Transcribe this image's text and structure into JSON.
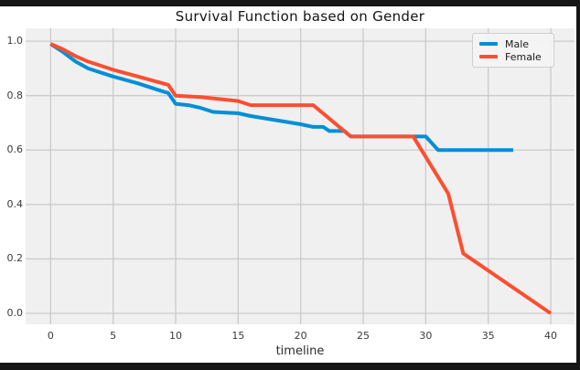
{
  "window": {
    "frame_color": "#161616",
    "outer_background": "#ffffff"
  },
  "chart_data": {
    "type": "line",
    "title": "Survival Function based on Gender",
    "xlabel": "timeline",
    "ylabel": "",
    "plot_background": "#f0f0f0",
    "grid_color": "#cbcbcb",
    "grid": true,
    "xlim": [
      -2.0,
      41.9
    ],
    "ylim": [
      -0.0403,
      1.0473
    ],
    "xticks": [
      0,
      5,
      10,
      15,
      20,
      25,
      30,
      35,
      40
    ],
    "yticks": [
      "0.0",
      "0.2",
      "0.4",
      "0.6",
      "0.8",
      "1.0"
    ],
    "ytick_values": [
      0.0,
      0.2,
      0.4,
      0.6,
      0.8,
      1.0
    ],
    "legend_position": "upper right",
    "series": [
      {
        "name": "Male",
        "color": "#008fd5",
        "x": [
          0,
          1,
          2,
          3,
          5,
          7,
          9,
          9.4,
          10,
          11,
          12,
          13,
          15,
          16,
          18,
          20,
          21,
          21.8,
          22.3,
          23.5,
          24,
          30,
          31,
          37
        ],
        "y": [
          0.99,
          0.96,
          0.925,
          0.9,
          0.87,
          0.845,
          0.815,
          0.81,
          0.77,
          0.765,
          0.755,
          0.74,
          0.735,
          0.725,
          0.71,
          0.695,
          0.685,
          0.685,
          0.67,
          0.67,
          0.65,
          0.65,
          0.6,
          0.6
        ]
      },
      {
        "name": "Female",
        "color": "#fc4f30",
        "x": [
          0,
          1,
          2,
          3,
          5,
          7,
          9,
          9.4,
          10,
          12,
          15,
          16,
          21,
          24,
          29,
          31.8,
          33,
          40
        ],
        "y": [
          0.99,
          0.97,
          0.945,
          0.925,
          0.895,
          0.87,
          0.845,
          0.84,
          0.8,
          0.795,
          0.78,
          0.765,
          0.765,
          0.65,
          0.65,
          0.44,
          0.22,
          0.0
        ]
      }
    ],
    "line_width": 4
  }
}
